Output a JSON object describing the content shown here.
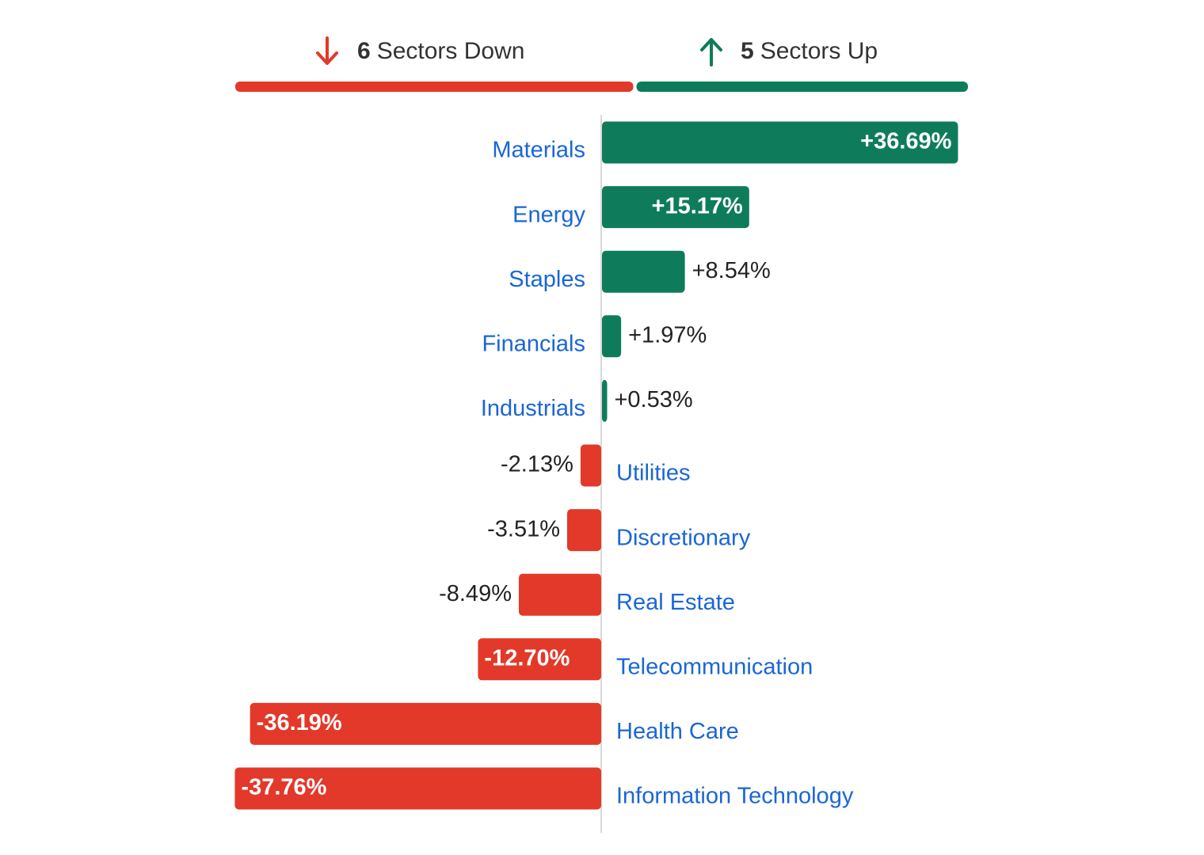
{
  "summary": {
    "down": {
      "count": 6,
      "label": "Sectors Down"
    },
    "up": {
      "count": 5,
      "label": "Sectors Up"
    }
  },
  "chart_data": {
    "type": "bar",
    "orientation": "horizontal",
    "categories": [
      "Materials",
      "Energy",
      "Staples",
      "Financials",
      "Industrials",
      "Utilities",
      "Discretionary",
      "Real Estate",
      "Telecommunication",
      "Health Care",
      "Information Technology"
    ],
    "values": [
      36.69,
      15.17,
      8.54,
      1.97,
      0.53,
      -2.13,
      -3.51,
      -8.49,
      -12.7,
      -36.19,
      -37.76
    ],
    "value_labels": [
      "+36.69%",
      "+15.17%",
      "+8.54%",
      "+1.97%",
      "+0.53%",
      "-2.13%",
      "-3.51%",
      "-8.49%",
      "-12.70%",
      "-36.19%",
      "-37.76%"
    ],
    "colors": {
      "positive": "#0e7c5a",
      "negative": "#e2392a"
    }
  }
}
